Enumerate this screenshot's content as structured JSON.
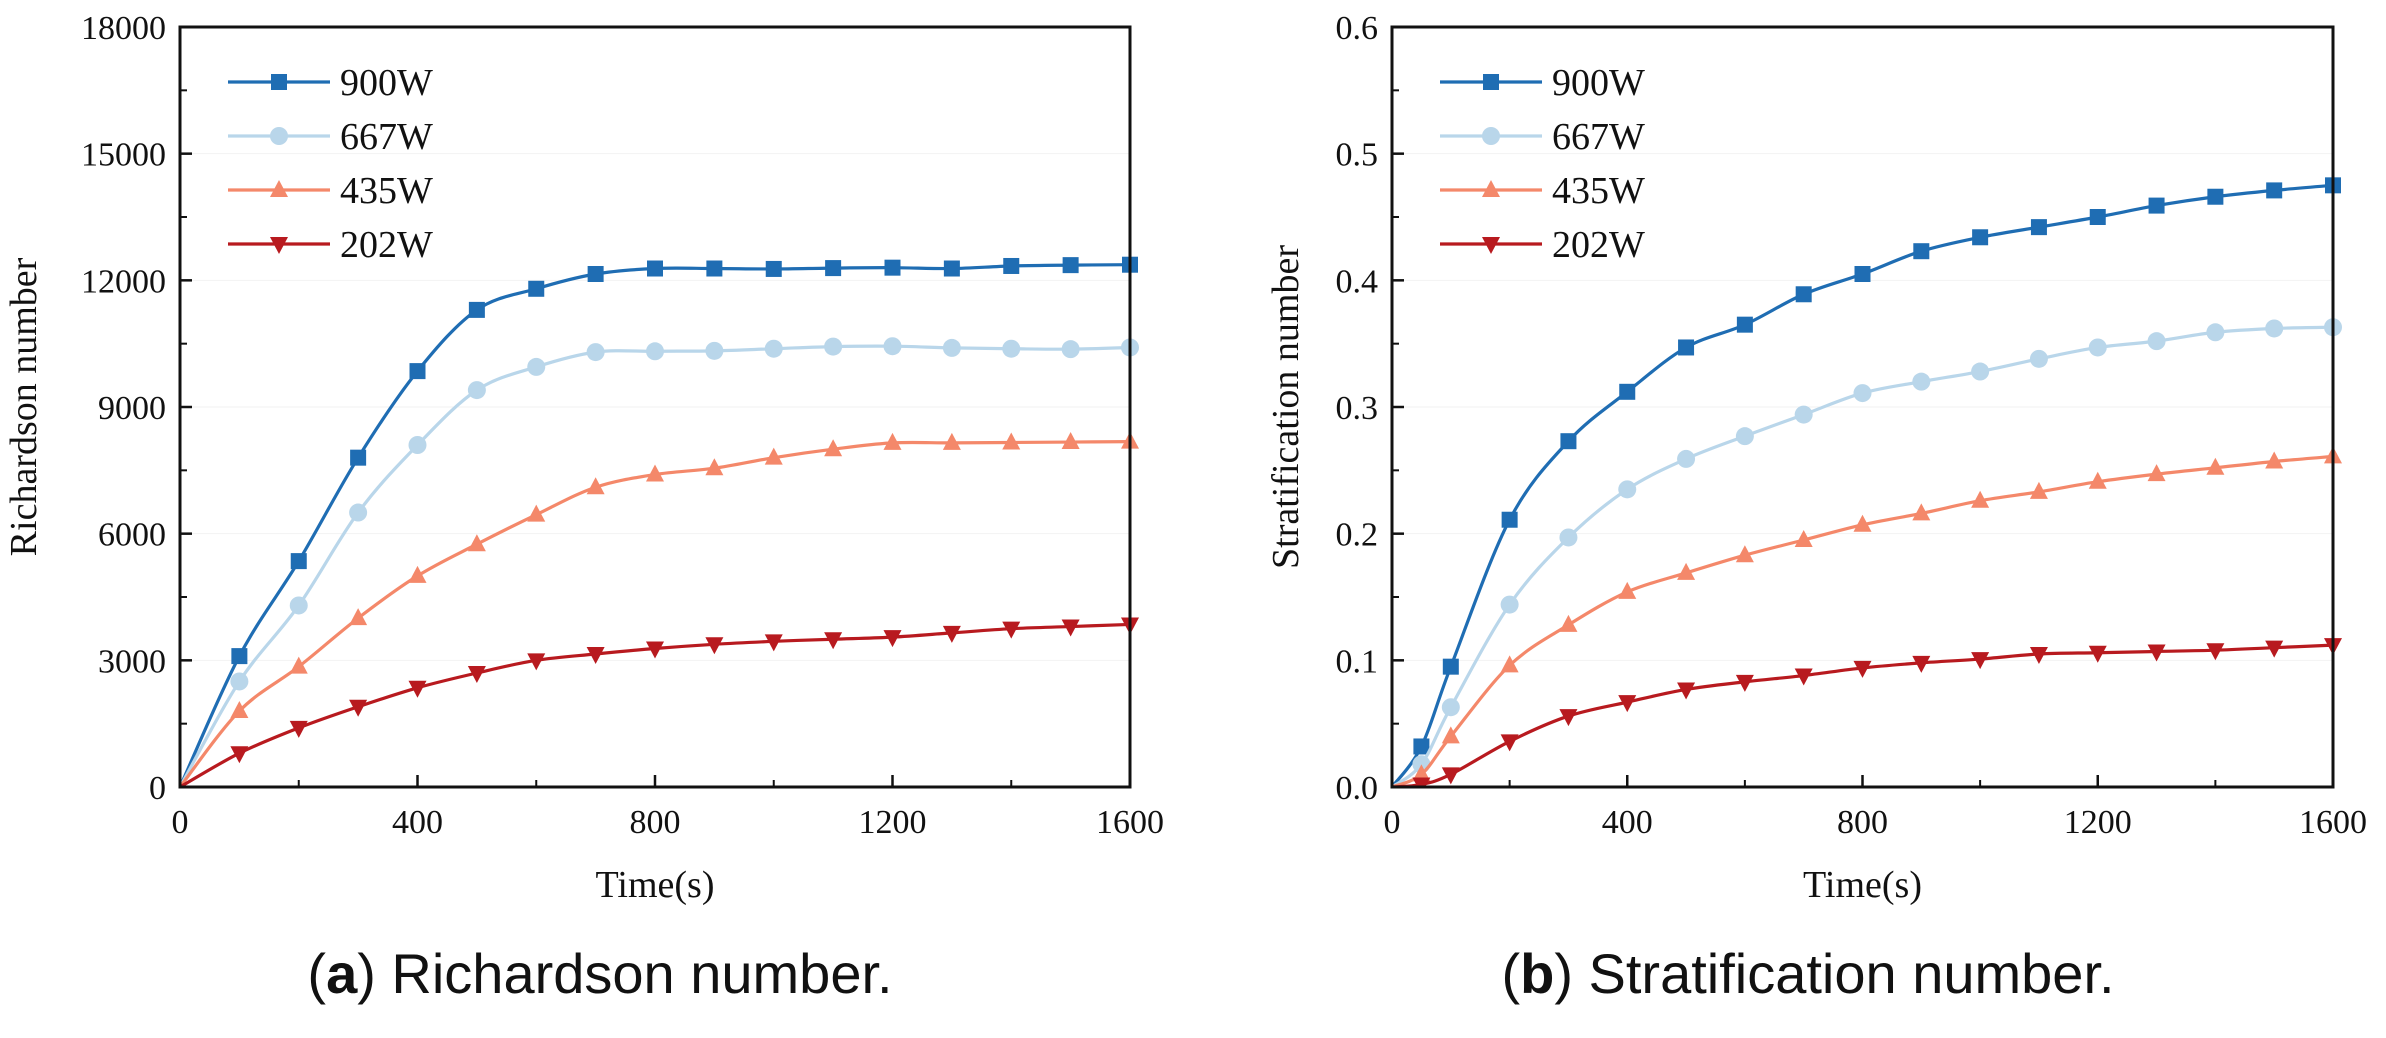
{
  "chart_data": [
    {
      "type": "line",
      "title": "",
      "xlabel": "Time(s)",
      "ylabel": "Richardson number",
      "xlim": [
        0,
        1600
      ],
      "ylim": [
        0,
        18000
      ],
      "xticks": [
        "0",
        "400",
        "800",
        "1200",
        "1600"
      ],
      "yticks": [
        "0",
        "3000",
        "6000",
        "9000",
        "12000",
        "15000",
        "18000"
      ],
      "legend_position": "top-left",
      "caption": {
        "letter": "a",
        "text": "Richardson number."
      },
      "series": [
        {
          "name": "900W",
          "color": "#1f6db3",
          "marker": "square",
          "x": [
            0,
            100,
            200,
            300,
            400,
            500,
            600,
            700,
            800,
            900,
            1000,
            1100,
            1200,
            1300,
            1400,
            1500,
            1600
          ],
          "y": [
            0,
            3100,
            5350,
            7800,
            9850,
            11300,
            11800,
            12150,
            12280,
            12280,
            12270,
            12290,
            12300,
            12280,
            12340,
            12360,
            12370
          ]
        },
        {
          "name": "667W",
          "color": "#b9d6ea",
          "marker": "circle",
          "x": [
            0,
            100,
            200,
            300,
            400,
            500,
            600,
            700,
            800,
            900,
            1000,
            1100,
            1200,
            1300,
            1400,
            1500,
            1600
          ],
          "y": [
            0,
            2500,
            4300,
            6500,
            8100,
            9400,
            9950,
            10300,
            10320,
            10330,
            10380,
            10430,
            10440,
            10400,
            10380,
            10370,
            10410
          ]
        },
        {
          "name": "435W",
          "color": "#f4886a",
          "marker": "triangle-up",
          "x": [
            0,
            100,
            200,
            300,
            400,
            500,
            600,
            700,
            800,
            900,
            1000,
            1100,
            1200,
            1300,
            1400,
            1500,
            1600
          ],
          "y": [
            0,
            1800,
            2850,
            4000,
            5000,
            5750,
            6450,
            7100,
            7400,
            7550,
            7800,
            8000,
            8150,
            8150,
            8160,
            8170,
            8180
          ]
        },
        {
          "name": "202W",
          "color": "#b81a1f",
          "marker": "triangle-down",
          "x": [
            0,
            100,
            200,
            300,
            400,
            500,
            600,
            700,
            800,
            900,
            1000,
            1100,
            1200,
            1300,
            1400,
            1500,
            1600
          ],
          "y": [
            0,
            800,
            1400,
            1900,
            2350,
            2700,
            3000,
            3150,
            3280,
            3380,
            3450,
            3500,
            3550,
            3650,
            3750,
            3800,
            3850
          ]
        }
      ]
    },
    {
      "type": "line",
      "title": "",
      "xlabel": "Time(s)",
      "ylabel": "Stratification number",
      "xlim": [
        0,
        1600
      ],
      "ylim": [
        0,
        0.6
      ],
      "xticks": [
        "0",
        "400",
        "800",
        "1200",
        "1600"
      ],
      "yticks": [
        "0.0",
        "0.1",
        "0.2",
        "0.3",
        "0.4",
        "0.5",
        "0.6"
      ],
      "legend_position": "top-left",
      "caption": {
        "letter": "b",
        "text": "Stratification number."
      },
      "series": [
        {
          "name": "900W",
          "color": "#1f6db3",
          "marker": "square",
          "x": [
            0,
            50,
            100,
            200,
            300,
            400,
            500,
            600,
            700,
            800,
            900,
            1000,
            1100,
            1200,
            1300,
            1400,
            1500,
            1600
          ],
          "y": [
            0,
            0.032,
            0.095,
            0.211,
            0.273,
            0.312,
            0.347,
            0.365,
            0.389,
            0.405,
            0.423,
            0.434,
            0.442,
            0.45,
            0.459,
            0.466,
            0.471,
            0.475
          ]
        },
        {
          "name": "667W",
          "color": "#b9d6ea",
          "marker": "circle",
          "x": [
            0,
            50,
            100,
            200,
            300,
            400,
            500,
            600,
            700,
            800,
            900,
            1000,
            1100,
            1200,
            1300,
            1400,
            1500,
            1600
          ],
          "y": [
            0,
            0.018,
            0.063,
            0.144,
            0.197,
            0.235,
            0.259,
            0.277,
            0.294,
            0.311,
            0.32,
            0.328,
            0.338,
            0.347,
            0.352,
            0.359,
            0.362,
            0.363
          ]
        },
        {
          "name": "435W",
          "color": "#f4886a",
          "marker": "triangle-up",
          "x": [
            0,
            50,
            100,
            200,
            300,
            400,
            500,
            600,
            700,
            800,
            900,
            1000,
            1100,
            1200,
            1300,
            1400,
            1500,
            1600
          ],
          "y": [
            0,
            0.01,
            0.04,
            0.096,
            0.128,
            0.154,
            0.169,
            0.183,
            0.195,
            0.207,
            0.216,
            0.226,
            0.233,
            0.241,
            0.247,
            0.252,
            0.257,
            0.261
          ]
        },
        {
          "name": "202W",
          "color": "#b81a1f",
          "marker": "triangle-down",
          "x": [
            0,
            50,
            100,
            200,
            300,
            400,
            500,
            600,
            700,
            800,
            900,
            1000,
            1100,
            1200,
            1300,
            1400,
            1500,
            1600
          ],
          "y": [
            0,
            0.002,
            0.01,
            0.036,
            0.056,
            0.067,
            0.077,
            0.083,
            0.088,
            0.094,
            0.098,
            0.101,
            0.105,
            0.106,
            0.107,
            0.108,
            0.11,
            0.112
          ]
        }
      ]
    }
  ]
}
